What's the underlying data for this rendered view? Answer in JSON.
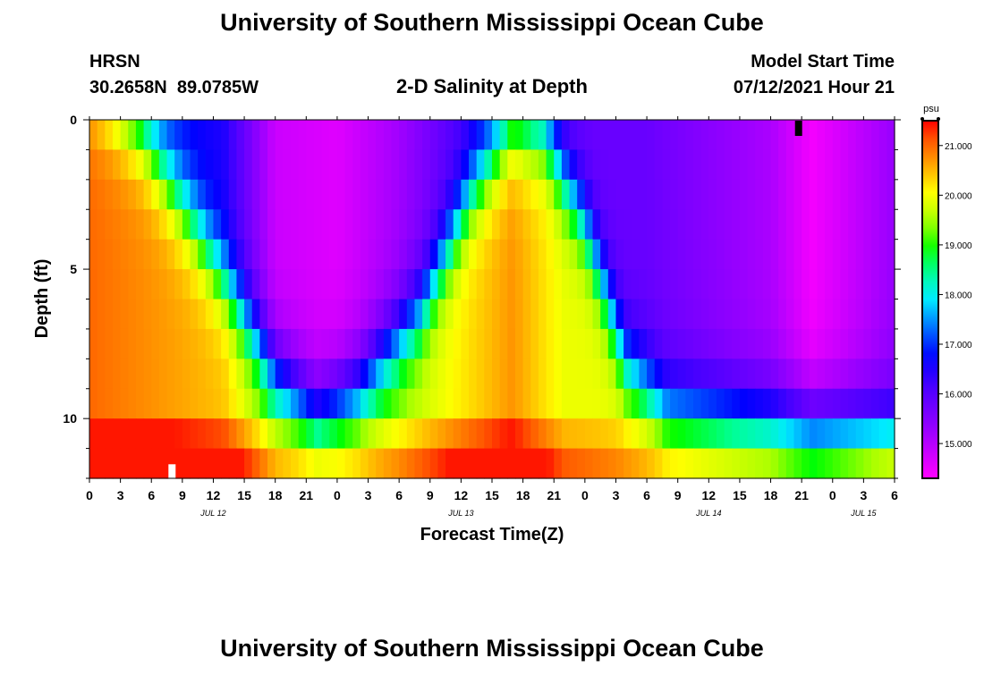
{
  "chart_data": {
    "type": "heatmap",
    "title": "University of Southern Mississippi Ocean Cube",
    "footer_title": "University of Southern Mississippi Ocean Cube",
    "station": {
      "name": "HRSN",
      "coords": "30.2658N  89.0785W"
    },
    "subtitle": "2-D Salinity at Depth",
    "model_start": {
      "label": "Model Start Time",
      "value": "07/12/2021 Hour 21"
    },
    "xlabel": "Forecast Time(Z)",
    "ylabel": "Depth (ft)",
    "x_range_hours": [
      0,
      78
    ],
    "y_range_ft": [
      0,
      12
    ],
    "x_tick_labels": [
      "0",
      "3",
      "6",
      "9",
      "12",
      "15",
      "18",
      "21",
      "0",
      "3",
      "6",
      "9",
      "12",
      "15",
      "18",
      "21",
      "0",
      "3",
      "6",
      "9",
      "12",
      "15",
      "18",
      "21",
      "0",
      "3",
      "6"
    ],
    "y_tick_labels": [
      {
        "value": 0,
        "label": "0"
      },
      {
        "value": 5,
        "label": "5"
      },
      {
        "value": 10,
        "label": "10"
      }
    ],
    "date_labels": [
      {
        "label": "JUL 12",
        "hour": 12
      },
      {
        "label": "JUL 13",
        "hour": 36
      },
      {
        "label": "JUL 14",
        "hour": 60
      },
      {
        "label": "JUL 15",
        "hour": 75
      }
    ],
    "colorbar": {
      "unit": "psu",
      "min": 14.3,
      "max": 21.5,
      "ticks": [
        "21.000",
        "20.000",
        "19.000",
        "18.000",
        "17.000",
        "16.000",
        "15.000"
      ],
      "tick_values": [
        21,
        20,
        19,
        18,
        17,
        16,
        15
      ]
    },
    "markers": [
      {
        "type": "white",
        "hour": 8,
        "depth_ft": 11.8
      },
      {
        "type": "black",
        "hour": 68.7,
        "depth_ft": 0.3
      }
    ],
    "model": {
      "surface_base": 17.3,
      "deep_gain": 4.0,
      "surface_time_wave": [
        [
          0,
          17.3
        ],
        [
          13,
          16.5
        ],
        [
          18,
          14.8
        ],
        [
          24,
          14.6
        ],
        [
          30,
          15.2
        ],
        [
          41,
          16.9
        ],
        [
          46,
          15.8
        ],
        [
          54,
          15.8
        ],
        [
          66,
          15.1
        ],
        [
          70,
          14.4
        ],
        [
          78,
          15.3
        ]
      ],
      "halocline_depth": [
        [
          0,
          -1.5
        ],
        [
          5,
          0.5
        ],
        [
          10,
          3.5
        ],
        [
          14,
          6
        ],
        [
          18,
          8.5
        ],
        [
          22,
          9.8
        ],
        [
          26,
          9
        ],
        [
          32,
          6.5
        ],
        [
          37,
          2.5
        ],
        [
          41,
          0.3
        ],
        [
          44,
          0.5
        ],
        [
          48,
          3.5
        ],
        [
          52,
          8.2
        ],
        [
          56,
          9.8
        ],
        [
          70,
          10.2
        ],
        [
          78,
          10.5
        ]
      ],
      "thickness": 3.2,
      "bottom_boost": [
        [
          0,
          3.5
        ],
        [
          26,
          2.5
        ],
        [
          40,
          3
        ],
        [
          54,
          1.5
        ],
        [
          70,
          1.4
        ],
        [
          78,
          2.2
        ]
      ]
    }
  }
}
